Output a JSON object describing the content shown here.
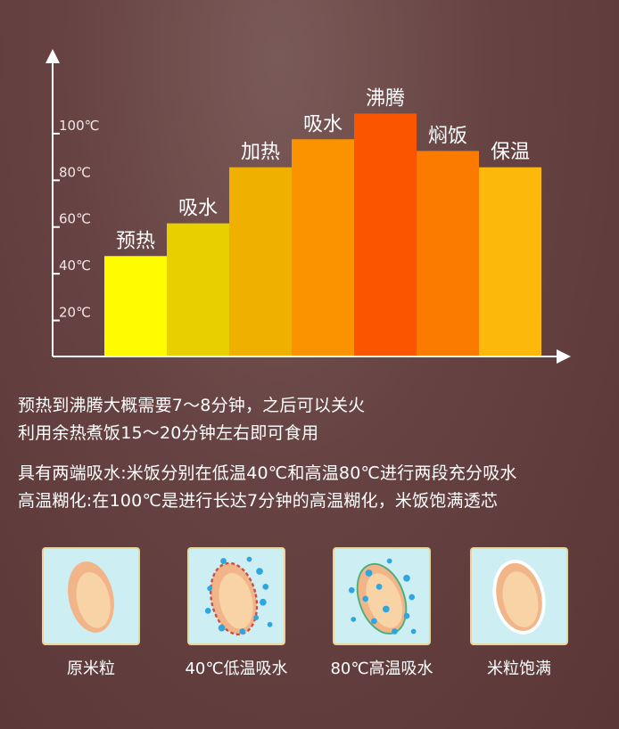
{
  "chart_data": {
    "type": "bar",
    "categories": [
      "预热",
      "吸水",
      "加热",
      "吸水",
      "沸腾",
      "焖饭",
      "保温"
    ],
    "values": [
      43,
      57,
      81,
      93,
      104,
      88,
      81
    ],
    "colors": [
      "#fffb00",
      "#e8cf00",
      "#f0b000",
      "#fb9200",
      "#fb5500",
      "#fb7a00",
      "#fcb90c"
    ],
    "y_ticks": [
      "20℃",
      "40℃",
      "60℃",
      "80℃",
      "100℃"
    ],
    "y_tick_values": [
      20,
      40,
      60,
      80,
      100
    ],
    "ylim": [
      0,
      124
    ],
    "grid": false
  },
  "paragraph1": [
    "预热到沸腾大概需要7～8分钟，之后可以关火",
    "利用余热煮饭15～20分钟左右即可食用"
  ],
  "paragraph2": [
    "具有两端吸水:米饭分别在低温40℃和高温80℃进行两段充分吸水",
    "高温糊化:在100℃是进行长达7分钟的高温糊化，米饭饱满透芯"
  ],
  "stages": [
    {
      "label": "原米粒",
      "icon": "raw-rice-grain-icon"
    },
    {
      "label": "40℃低温吸水",
      "icon": "low-temp-absorb-icon"
    },
    {
      "label": "80℃高温吸水",
      "icon": "high-temp-absorb-icon"
    },
    {
      "label": "米粒饱满",
      "icon": "plump-rice-grain-icon"
    }
  ]
}
